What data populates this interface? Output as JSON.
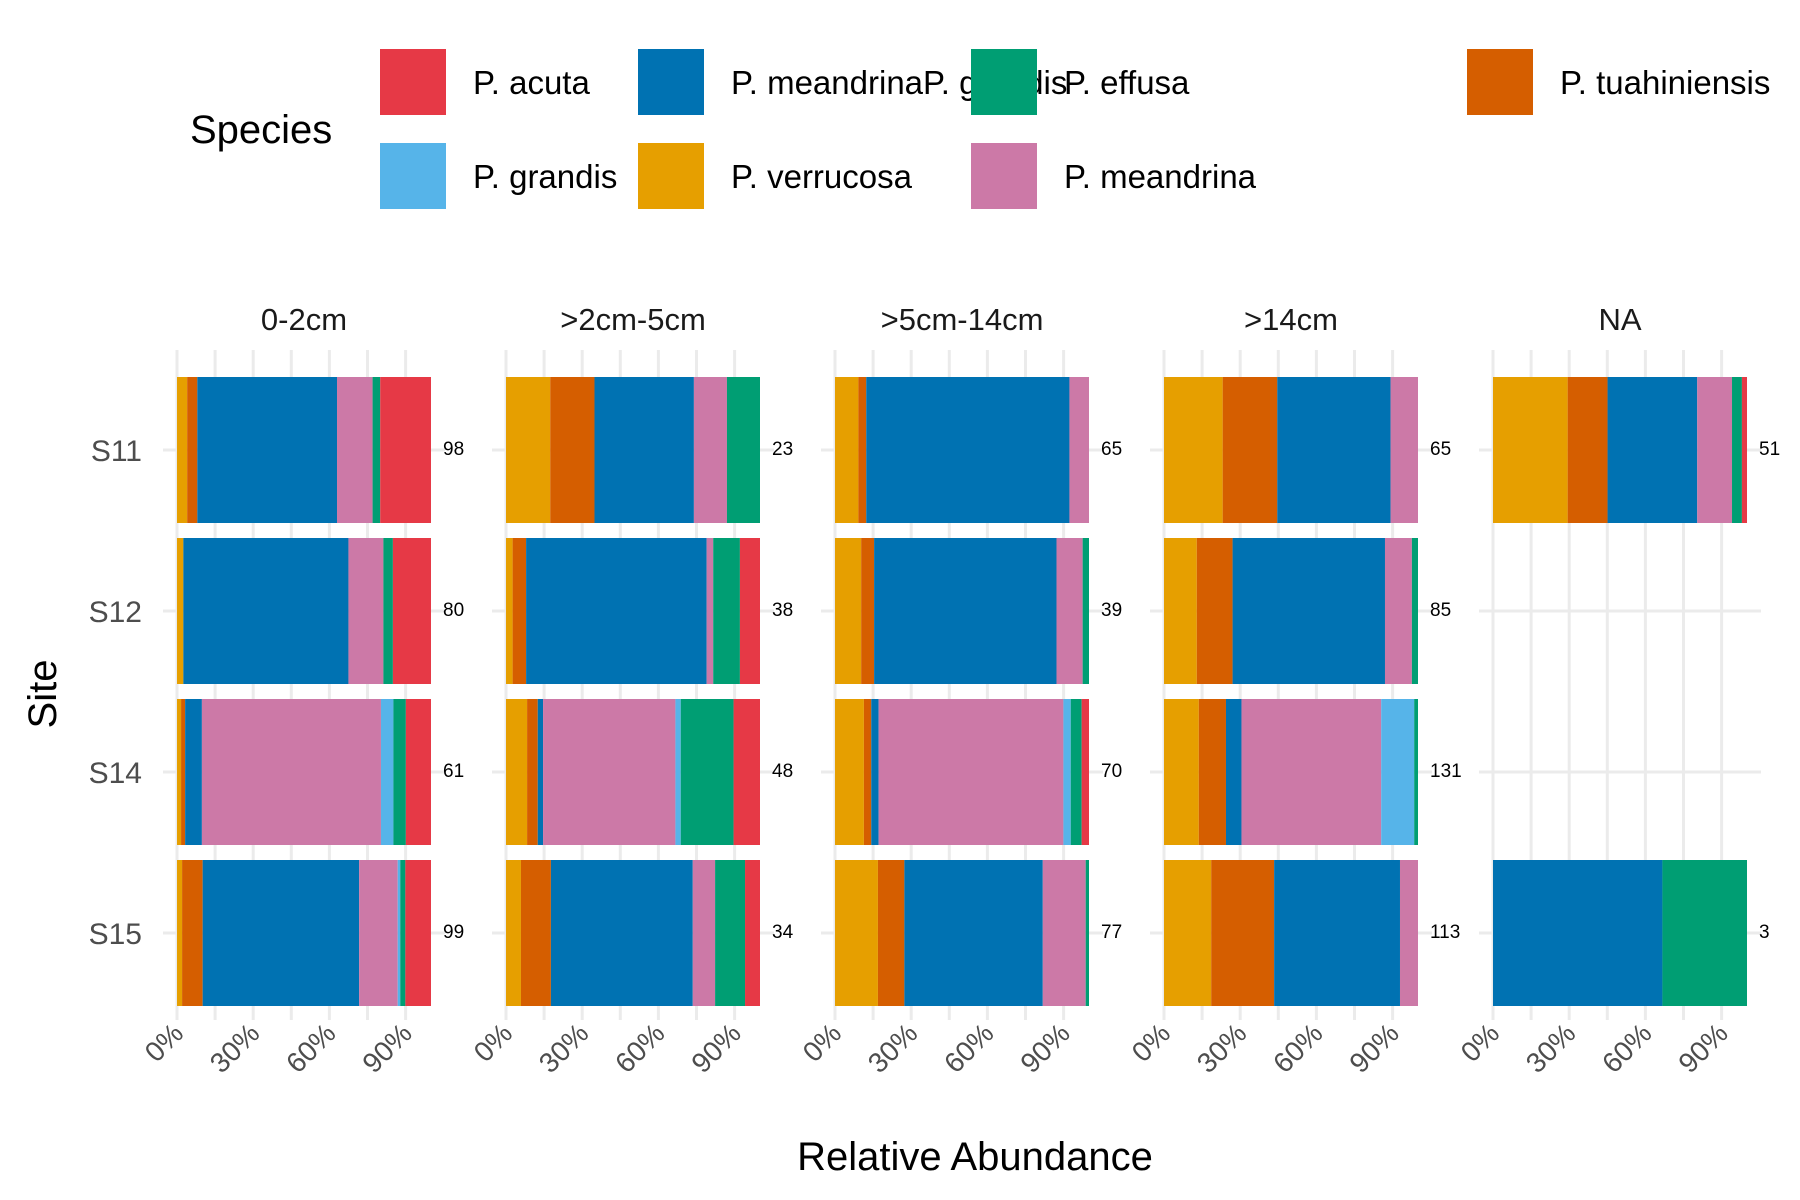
{
  "chart_data": {
    "type": "bar",
    "orientation": "horizontal",
    "stacked": true,
    "xlabel": "Relative Abundance",
    "ylabel": "Site",
    "xlim": [
      0,
      100
    ],
    "x_ticks": [
      "0%",
      "30%",
      "60%",
      "90%"
    ],
    "x_tick_values": [
      0,
      30,
      60,
      90
    ],
    "legend": {
      "title": "Species",
      "position": "top",
      "entries": [
        {
          "name": "P. acuta",
          "color": "#E63946"
        },
        {
          "name": "P. grandis",
          "color": "#56B4E9"
        },
        {
          "name": "P. meandrinaP. grandis",
          "color": "#0072B2"
        },
        {
          "name": "P. verrucosa",
          "color": "#E69F00"
        },
        {
          "name": "P. effusa",
          "color": "#009E73"
        },
        {
          "name": "P. meandrina",
          "color": "#CC79A7"
        },
        {
          "name": "P. tuahiniensis",
          "color": "#D55E00"
        }
      ]
    },
    "stack_order": [
      "P. verrucosa",
      "P. tuahiniensis",
      "P. meandrinaP. grandis",
      "P. meandrina",
      "P. grandis",
      "P. effusa",
      "P. acuta"
    ],
    "sites": [
      "S11",
      "S12",
      "S14",
      "S15"
    ],
    "facets": [
      {
        "label": "0-2cm",
        "rows": [
          {
            "site": "S11",
            "n": "98",
            "values": {
              "P. verrucosa": 4,
              "P. tuahiniensis": 4,
              "P. meandrinaP. grandis": 55,
              "P. meandrina": 14,
              "P. grandis": 0,
              "P. effusa": 3,
              "P. acuta": 20
            }
          },
          {
            "site": "S12",
            "n": "80",
            "values": {
              "P. verrucosa": 2.5,
              "P. tuahiniensis": 0,
              "P. meandrinaP. grandis": 65,
              "P. meandrina": 13.75,
              "P. grandis": 0,
              "P. effusa": 3.75,
              "P. acuta": 15
            }
          },
          {
            "site": "S14",
            "n": "61",
            "values": {
              "P. verrucosa": 1.6,
              "P. tuahiniensis": 1.6,
              "P. meandrinaP. grandis": 6.6,
              "P. meandrina": 70.5,
              "P. grandis": 4.9,
              "P. effusa": 4.9,
              "P. acuta": 9.9
            }
          },
          {
            "site": "S15",
            "n": "99",
            "values": {
              "P. verrucosa": 2,
              "P. tuahiniensis": 8.1,
              "P. meandrinaP. grandis": 61.6,
              "P. meandrina": 15.2,
              "P. grandis": 1,
              "P. effusa": 2,
              "P. acuta": 10.1
            }
          }
        ]
      },
      {
        "label": ">2cm-5cm",
        "rows": [
          {
            "site": "S11",
            "n": "23",
            "values": {
              "P. verrucosa": 17.4,
              "P. tuahiniensis": 17.4,
              "P. meandrinaP. grandis": 39.1,
              "P. meandrina": 13,
              "P. grandis": 0,
              "P. effusa": 13,
              "P. acuta": 0
            }
          },
          {
            "site": "S12",
            "n": "38",
            "values": {
              "P. verrucosa": 2.6,
              "P. tuahiniensis": 5.3,
              "P. meandrinaP. grandis": 71,
              "P. meandrina": 2.6,
              "P. grandis": 0,
              "P. effusa": 10.5,
              "P. acuta": 7.9
            }
          },
          {
            "site": "S14",
            "n": "48",
            "values": {
              "P. verrucosa": 8.3,
              "P. tuahiniensis": 4.2,
              "P. meandrinaP. grandis": 2.1,
              "P. meandrina": 52.1,
              "P. grandis": 2.1,
              "P. effusa": 20.8,
              "P. acuta": 10.4
            }
          },
          {
            "site": "S15",
            "n": "34",
            "values": {
              "P. verrucosa": 5.9,
              "P. tuahiniensis": 11.8,
              "P. meandrinaP. grandis": 55.9,
              "P. meandrina": 8.8,
              "P. grandis": 0,
              "P. effusa": 11.8,
              "P. acuta": 5.9
            }
          }
        ]
      },
      {
        "label": ">5cm-14cm",
        "rows": [
          {
            "site": "S11",
            "n": "65",
            "values": {
              "P. verrucosa": 9.2,
              "P. tuahiniensis": 3.1,
              "P. meandrinaP. grandis": 80,
              "P. meandrina": 7.7,
              "P. grandis": 0,
              "P. effusa": 0,
              "P. acuta": 0
            }
          },
          {
            "site": "S12",
            "n": "39",
            "values": {
              "P. verrucosa": 10.3,
              "P. tuahiniensis": 5.1,
              "P. meandrinaP. grandis": 71.8,
              "P. meandrina": 10.3,
              "P. grandis": 0,
              "P. effusa": 2.5,
              "P. acuta": 0
            }
          },
          {
            "site": "S14",
            "n": "70",
            "values": {
              "P. verrucosa": 11.4,
              "P. tuahiniensis": 2.9,
              "P. meandrinaP. grandis": 2.9,
              "P. meandrina": 72.9,
              "P. grandis": 2.9,
              "P. effusa": 4.3,
              "P. acuta": 2.9
            }
          },
          {
            "site": "S15",
            "n": "77",
            "values": {
              "P. verrucosa": 16.9,
              "P. tuahiniensis": 10.4,
              "P. meandrinaP. grandis": 54.5,
              "P. meandrina": 16.9,
              "P. grandis": 0,
              "P. effusa": 1.3,
              "P. acuta": 0
            }
          }
        ]
      },
      {
        "label": ">14cm",
        "rows": [
          {
            "site": "S11",
            "n": "65",
            "values": {
              "P. verrucosa": 23.1,
              "P. tuahiniensis": 21.5,
              "P. meandrinaP. grandis": 44.6,
              "P. meandrina": 10.8,
              "P. grandis": 0,
              "P. effusa": 0,
              "P. acuta": 0
            }
          },
          {
            "site": "S12",
            "n": "85",
            "values": {
              "P. verrucosa": 12.9,
              "P. tuahiniensis": 14.1,
              "P. meandrinaP. grandis": 60,
              "P. meandrina": 10.6,
              "P. grandis": 0,
              "P. effusa": 2.4,
              "P. acuta": 0
            }
          },
          {
            "site": "S14",
            "n": "131",
            "values": {
              "P. verrucosa": 13.7,
              "P. tuahiniensis": 10.7,
              "P. meandrinaP. grandis": 6.1,
              "P. meandrina": 55,
              "P. grandis": 13,
              "P. effusa": 1.5,
              "P. acuta": 0
            }
          },
          {
            "site": "S15",
            "n": "113",
            "values": {
              "P. verrucosa": 18.6,
              "P. tuahiniensis": 24.8,
              "P. meandrinaP. grandis": 49.6,
              "P. meandrina": 7.1,
              "P. grandis": 0,
              "P. effusa": 0,
              "P. acuta": 0
            }
          }
        ]
      },
      {
        "label": "NA",
        "rows": [
          {
            "site": "S11",
            "n": "51",
            "values": {
              "P. verrucosa": 29.4,
              "P. tuahiniensis": 15.7,
              "P. meandrinaP. grandis": 35.3,
              "P. meandrina": 13.7,
              "P. grandis": 0,
              "P. effusa": 3.9,
              "P. acuta": 2
            }
          },
          {
            "site": "S15",
            "n": "3",
            "values": {
              "P. verrucosa": 0,
              "P. tuahiniensis": 0,
              "P. meandrinaP. grandis": 66.7,
              "P. meandrina": 0,
              "P. grandis": 0,
              "P. effusa": 33.3,
              "P. acuta": 0
            }
          }
        ]
      }
    ]
  }
}
